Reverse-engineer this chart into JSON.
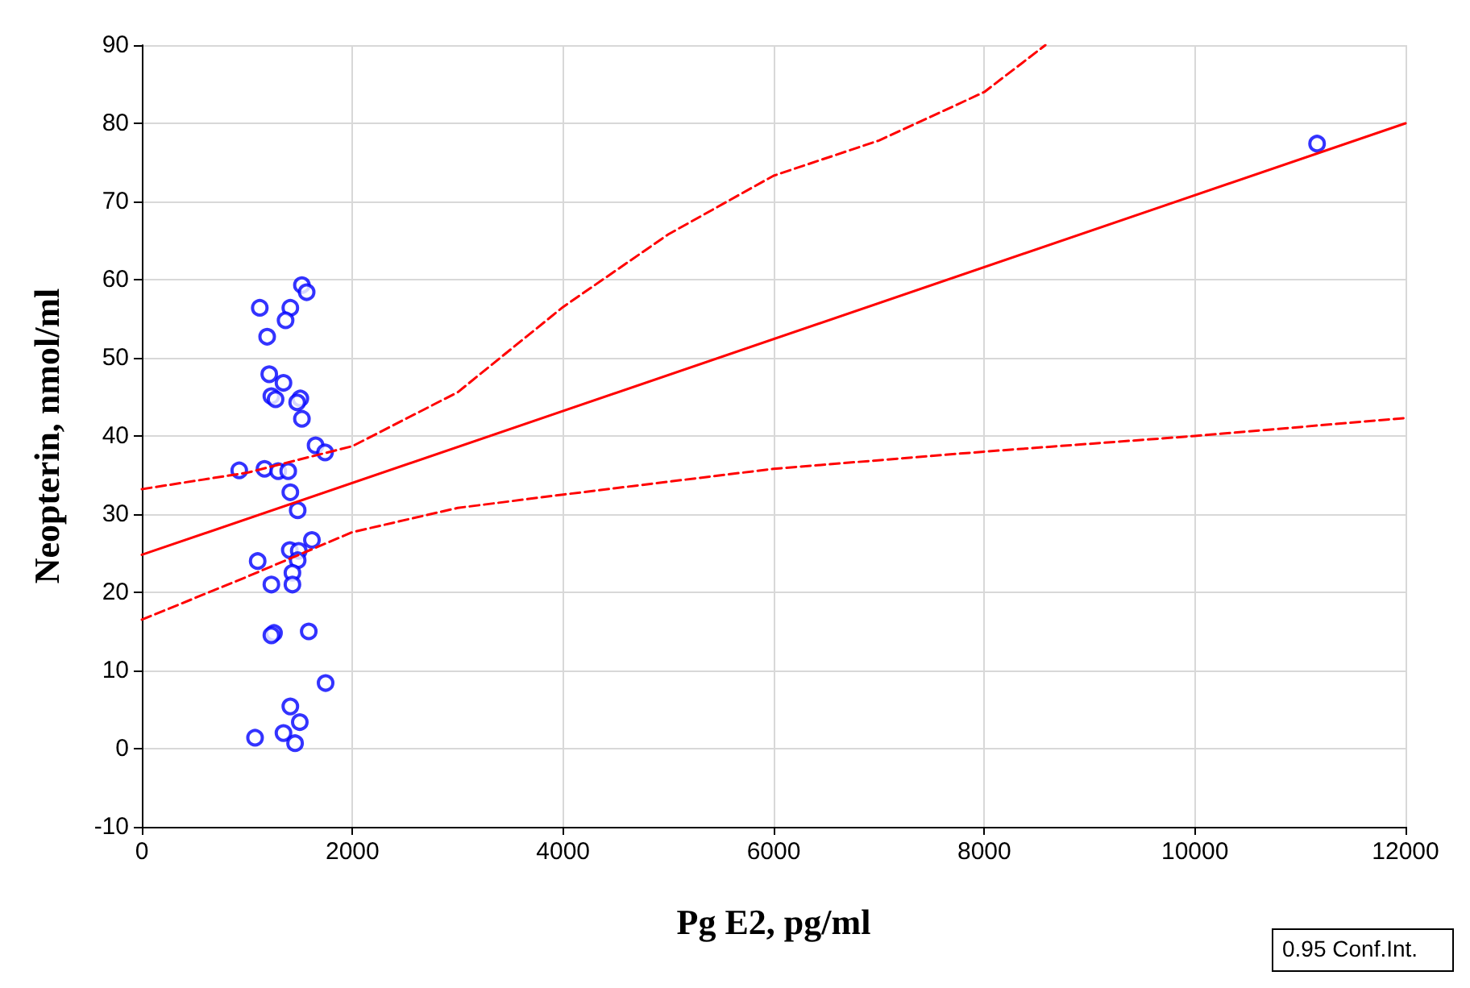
{
  "chart_data": {
    "type": "scatter",
    "xlabel": "Pg E2, pg/ml",
    "ylabel": "Neopterin, nmol/ml",
    "xlim": [
      0,
      12000
    ],
    "xticks": [
      0,
      2000,
      4000,
      6000,
      8000,
      10000,
      12000
    ],
    "ylim": [
      -10,
      90
    ],
    "yticks": [
      -10,
      0,
      10,
      20,
      30,
      40,
      50,
      60,
      70,
      80,
      90
    ],
    "grid": true,
    "annotations": [
      "0.95 Conf.Int."
    ],
    "series": [
      {
        "color": "#0000ff",
        "marker": "circle",
        "x": [
          1520,
          1565,
          1120,
          1410,
          1365,
          1190,
          1210,
          1345,
          1230,
          1270,
          1505,
          1475,
          1520,
          1650,
          1740,
          925,
          1165,
          1295,
          1390,
          1410,
          1480,
          1615,
          1100,
          1405,
          1490,
          1480,
          1430,
          1230,
          1430,
          1255,
          1230,
          1585,
          1745,
          1410,
          1500,
          1345,
          1075,
          1455,
          11160
        ],
        "values": [
          59.3,
          58.4,
          56.4,
          56.4,
          54.8,
          52.7,
          47.9,
          46.8,
          45.1,
          44.7,
          44.8,
          44.3,
          42.2,
          38.8,
          37.9,
          35.6,
          35.8,
          35.5,
          35.5,
          32.8,
          30.5,
          26.7,
          24.0,
          25.4,
          25.3,
          24.1,
          22.5,
          21.0,
          21.0,
          14.8,
          14.5,
          15.0,
          8.4,
          5.4,
          3.4,
          2.0,
          1.4,
          0.7,
          77.4
        ]
      },
      {
        "type": "line",
        "color": "#ff0000",
        "marker": "none",
        "line_style": "solid",
        "x": [
          0,
          12000
        ],
        "values": [
          24.8,
          80
        ]
      },
      {
        "type": "line",
        "color": "#ff0000",
        "marker": "none",
        "line_style": "dashed",
        "x": [
          0,
          1000,
          2000,
          3000,
          4000,
          5000,
          6000,
          7000,
          8000,
          8580
        ],
        "values": [
          33.2,
          35.3,
          38.7,
          45.6,
          56.5,
          65.8,
          73.3,
          77.8,
          84,
          90
        ]
      },
      {
        "type": "line",
        "color": "#ff0000",
        "marker": "none",
        "line_style": "dashed",
        "x": [
          0,
          1000,
          2000,
          3000,
          4000,
          6000,
          8000,
          10000,
          12000
        ],
        "values": [
          16.5,
          22,
          27.7,
          30.8,
          32.5,
          35.8,
          38,
          40,
          42.3
        ]
      }
    ]
  }
}
